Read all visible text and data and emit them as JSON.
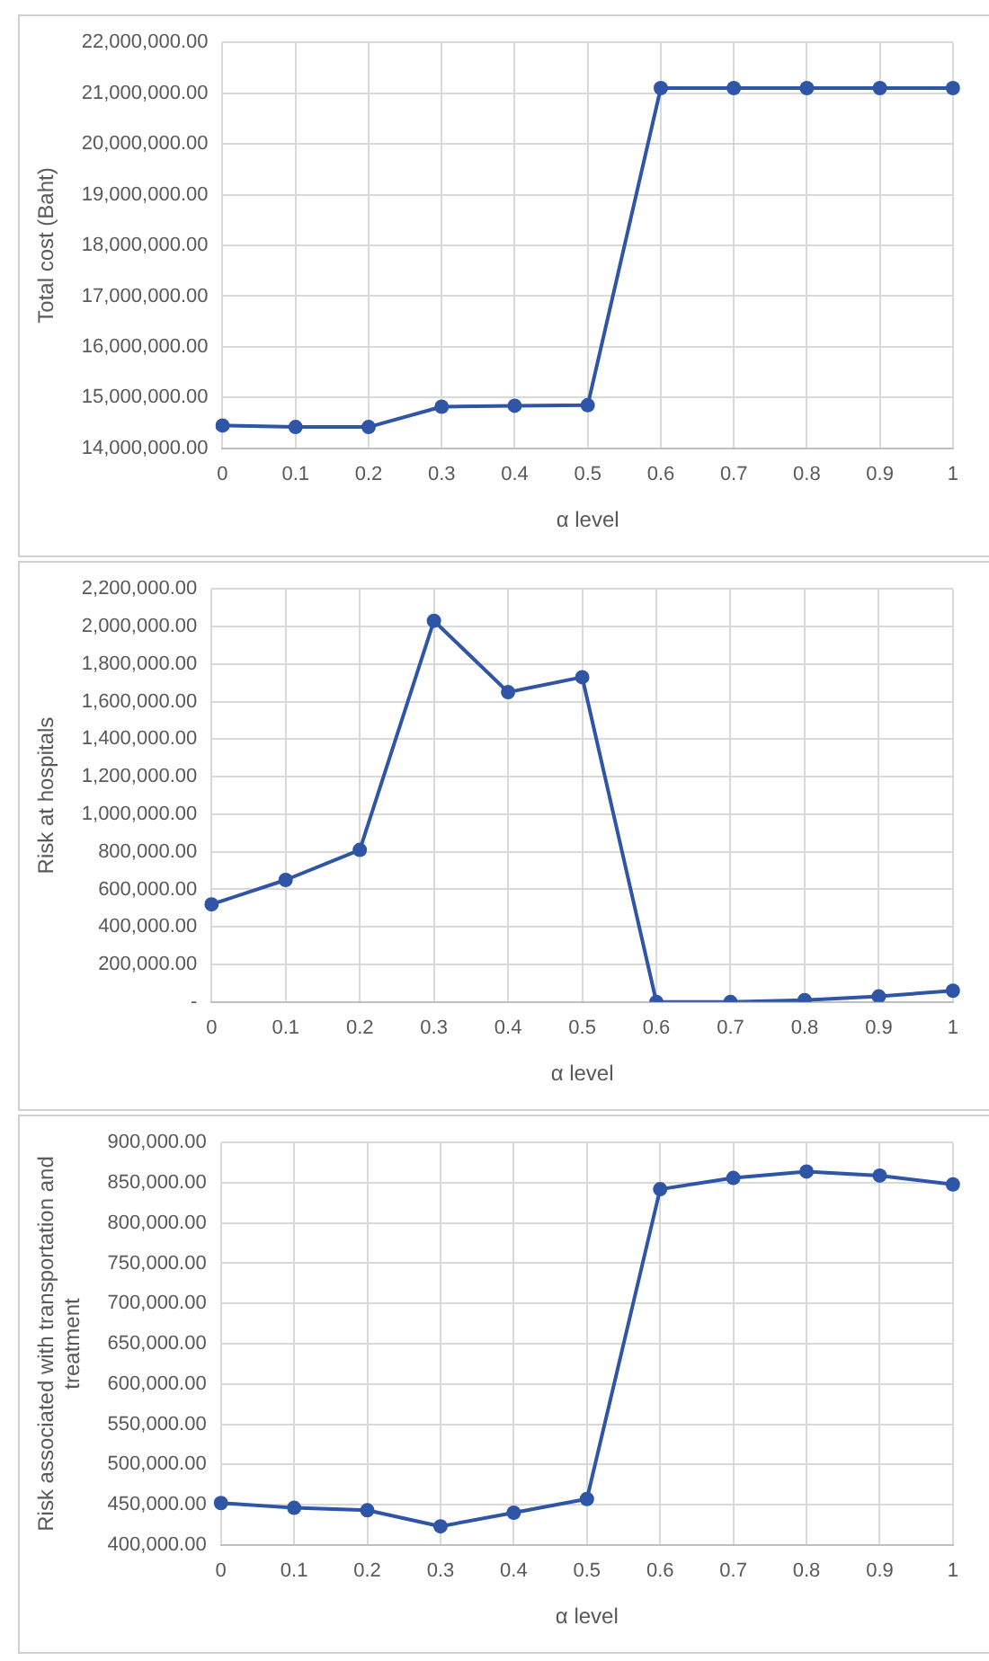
{
  "chart_data": [
    {
      "type": "line",
      "xlabel": "α level",
      "ylabel": "Total cost (Baht)",
      "categories": [
        "0",
        "0.1",
        "0.2",
        "0.3",
        "0.4",
        "0.5",
        "0.6",
        "0.7",
        "0.8",
        "0.9",
        "1"
      ],
      "series": [
        {
          "color": "#2e55a6",
          "values": [
            14450000,
            14420000,
            14420000,
            14820000,
            14840000,
            14850000,
            21100000,
            21100000,
            21100000,
            21100000,
            21100000
          ]
        }
      ],
      "ylim": [
        14000000,
        22000000
      ],
      "yticks": [
        {
          "value": 14000000,
          "label": "14,000,000.00"
        },
        {
          "value": 15000000,
          "label": "15,000,000.00"
        },
        {
          "value": 16000000,
          "label": "16,000,000.00"
        },
        {
          "value": 17000000,
          "label": "17,000,000.00"
        },
        {
          "value": 18000000,
          "label": "18,000,000.00"
        },
        {
          "value": 19000000,
          "label": "19,000,000.00"
        },
        {
          "value": 20000000,
          "label": "20,000,000.00"
        },
        {
          "value": 21000000,
          "label": "21,000,000.00"
        },
        {
          "value": 22000000,
          "label": "22,000,000.00"
        }
      ],
      "grid": true,
      "legend": false,
      "marker": "circle",
      "line_style": "solid"
    },
    {
      "type": "line",
      "xlabel": "α level",
      "ylabel": "Risk at hospitals",
      "categories": [
        "0",
        "0.1",
        "0.2",
        "0.3",
        "0.4",
        "0.5",
        "0.6",
        "0.7",
        "0.8",
        "0.9",
        "1"
      ],
      "series": [
        {
          "color": "#2e55a6",
          "values": [
            520000,
            650000,
            810000,
            2030000,
            1650000,
            1730000,
            0,
            0,
            10000,
            30000,
            60000
          ]
        }
      ],
      "ylim": [
        0,
        2200000
      ],
      "yticks": [
        {
          "value": 0,
          "label": "-"
        },
        {
          "value": 200000,
          "label": "200,000.00"
        },
        {
          "value": 400000,
          "label": "400,000.00"
        },
        {
          "value": 600000,
          "label": "600,000.00"
        },
        {
          "value": 800000,
          "label": "800,000.00"
        },
        {
          "value": 1000000,
          "label": "1,000,000.00"
        },
        {
          "value": 1200000,
          "label": "1,200,000.00"
        },
        {
          "value": 1400000,
          "label": "1,400,000.00"
        },
        {
          "value": 1600000,
          "label": "1,600,000.00"
        },
        {
          "value": 1800000,
          "label": "1,800,000.00"
        },
        {
          "value": 2000000,
          "label": "2,000,000.00"
        },
        {
          "value": 2200000,
          "label": "2,200,000.00"
        }
      ],
      "grid": true,
      "legend": false,
      "marker": "circle",
      "line_style": "solid"
    },
    {
      "type": "line",
      "xlabel": "α level",
      "ylabel": "Risk associated with transportation and treatment",
      "categories": [
        "0",
        "0.1",
        "0.2",
        "0.3",
        "0.4",
        "0.5",
        "0.6",
        "0.7",
        "0.8",
        "0.9",
        "1"
      ],
      "series": [
        {
          "color": "#2e55a6",
          "values": [
            452000,
            446000,
            443000,
            423000,
            440000,
            457000,
            842000,
            856000,
            864000,
            859000,
            848000
          ]
        }
      ],
      "ylim": [
        400000,
        900000
      ],
      "yticks": [
        {
          "value": 400000,
          "label": "400,000.00"
        },
        {
          "value": 450000,
          "label": "450,000.00"
        },
        {
          "value": 500000,
          "label": "500,000.00"
        },
        {
          "value": 550000,
          "label": "550,000.00"
        },
        {
          "value": 600000,
          "label": "600,000.00"
        },
        {
          "value": 650000,
          "label": "650,000.00"
        },
        {
          "value": 700000,
          "label": "700,000.00"
        },
        {
          "value": 750000,
          "label": "750,000.00"
        },
        {
          "value": 800000,
          "label": "800,000.00"
        },
        {
          "value": 850000,
          "label": "850,000.00"
        },
        {
          "value": 900000,
          "label": "900,000.00"
        }
      ],
      "grid": true,
      "legend": false,
      "marker": "circle",
      "line_style": "solid"
    }
  ]
}
